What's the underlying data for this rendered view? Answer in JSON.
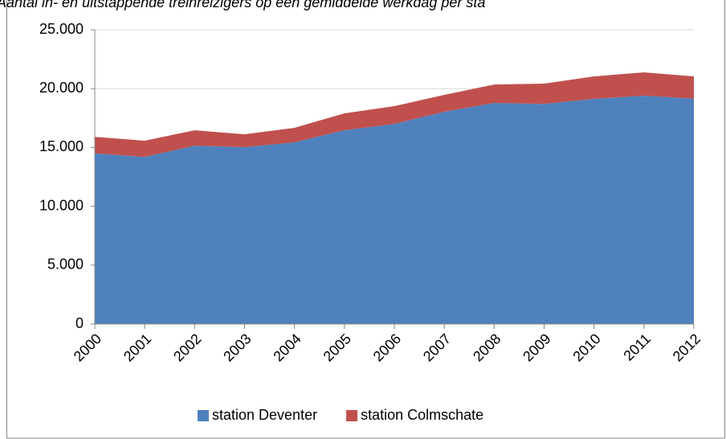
{
  "chart_data": {
    "type": "stacked_area",
    "title": "Aantal in- en uitstappende treinreizigers op een gemiddelde werkdag per sta",
    "categories": [
      "2000",
      "2001",
      "2002",
      "2003",
      "2004",
      "2005",
      "2006",
      "2007",
      "2008",
      "2009",
      "2010",
      "2011",
      "2012"
    ],
    "series": [
      {
        "name": "station Deventer",
        "color": "#4f81bd",
        "values": [
          14500,
          14200,
          15150,
          15030,
          15440,
          16460,
          17000,
          18030,
          18780,
          18700,
          19130,
          19400,
          19150
        ]
      },
      {
        "name": "station Colmschate",
        "color": "#c0504d",
        "values": [
          1400,
          1370,
          1310,
          1090,
          1230,
          1440,
          1510,
          1440,
          1570,
          1720,
          1910,
          1980,
          1890
        ]
      }
    ],
    "ylim": [
      0,
      25000
    ],
    "yticks": [
      0,
      {
        "value": 5000,
        "label": "5.000"
      },
      {
        "value": 10000,
        "label": "10.000"
      },
      {
        "value": 15000,
        "label": "15.000"
      },
      {
        "value": 20000,
        "label": "20.000"
      },
      {
        "value": 25000,
        "label": "25.000"
      }
    ],
    "grid": true,
    "legend": "bottom"
  }
}
